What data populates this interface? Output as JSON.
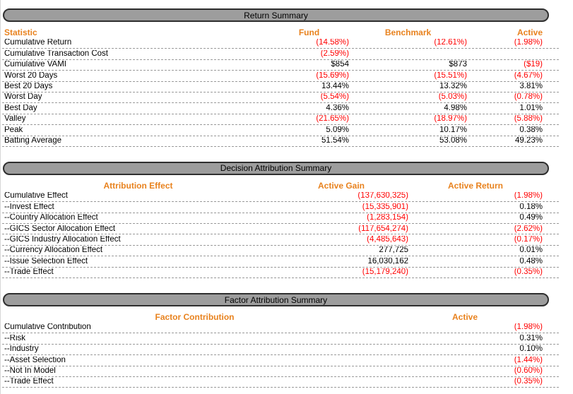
{
  "colors": {
    "accent_orange": "#e8821e",
    "negative_red": "#ff0000",
    "header_bar_gray": "#9d9d9d",
    "dashed_line_gray": "#9a9a9a"
  },
  "sections": [
    {
      "title": "Return Summary",
      "columns": [
        "Statistic",
        "Fund",
        "Benchmark",
        "Active"
      ],
      "rows": [
        {
          "label": "Cumulative Return",
          "values": [
            "(14.58%)",
            "(12.61%)",
            "(1.98%)"
          ]
        },
        {
          "label": "Cumulative Transaction Cost",
          "values": [
            "(2.59%)",
            "",
            ""
          ]
        },
        {
          "label": "Cumulative VAMI",
          "values": [
            "$854",
            "$873",
            "($19)"
          ]
        },
        {
          "label": "Worst 20 Days",
          "values": [
            "(15.69%)",
            "(15.51%)",
            "(4.67%)"
          ]
        },
        {
          "label": "Best 20 Days",
          "values": [
            "13.44%",
            "13.32%",
            "3.81%"
          ]
        },
        {
          "label": "Worst Day",
          "values": [
            "(5.54%)",
            "(5.03%)",
            "(0.78%)"
          ]
        },
        {
          "label": "Best Day",
          "values": [
            "4.36%",
            "4.98%",
            "1.01%"
          ]
        },
        {
          "label": "Valley",
          "values": [
            "(21.65%)",
            "(18.97%)",
            "(5.88%)"
          ]
        },
        {
          "label": "Peak",
          "values": [
            "5.09%",
            "10.17%",
            "0.38%"
          ]
        },
        {
          "label": "Batting Average",
          "values": [
            "51.54%",
            "53.08%",
            "49.23%"
          ]
        }
      ]
    },
    {
      "title": "Decision Attribution Summary",
      "columns": [
        "Attribution Effect",
        "Active Gain",
        "Active Return"
      ],
      "rows": [
        {
          "label": "Cumulative Effect",
          "values": [
            "(137,630,325)",
            "(1.98%)"
          ]
        },
        {
          "label": "--Invest Effect",
          "values": [
            "(15,335,901)",
            "0.18%"
          ]
        },
        {
          "label": "--Country Allocation Effect",
          "values": [
            "(1,283,154)",
            "0.49%"
          ]
        },
        {
          "label": "--GICS Sector Allocation Effect",
          "values": [
            "(117,654,274)",
            "(2.62%)"
          ]
        },
        {
          "label": "--GICS Industry Allocation Effect",
          "values": [
            "(4,485,643)",
            "(0.17%)"
          ]
        },
        {
          "label": "--Currency Allocation Effect",
          "values": [
            "277,725",
            "0.01%"
          ]
        },
        {
          "label": "--Issue Selection Effect",
          "values": [
            "16,030,162",
            "0.48%"
          ]
        },
        {
          "label": "--Trade Effect",
          "values": [
            "(15,179,240)",
            "(0.35%)"
          ]
        }
      ]
    },
    {
      "title": "Factor Attribution Summary",
      "columns": [
        "Factor Contribution",
        "Active"
      ],
      "rows": [
        {
          "label": "Cumulative Contribution",
          "values": [
            "(1.98%)"
          ]
        },
        {
          "label": "--Risk",
          "values": [
            "0.31%"
          ]
        },
        {
          "label": "--Industry",
          "values": [
            "0.10%"
          ]
        },
        {
          "label": "--Asset Selection",
          "values": [
            "(1.44%)"
          ]
        },
        {
          "label": "--Not In Model",
          "values": [
            "(0.60%)"
          ]
        },
        {
          "label": "--Trade Effect",
          "values": [
            "(0.35%)"
          ]
        }
      ]
    }
  ]
}
